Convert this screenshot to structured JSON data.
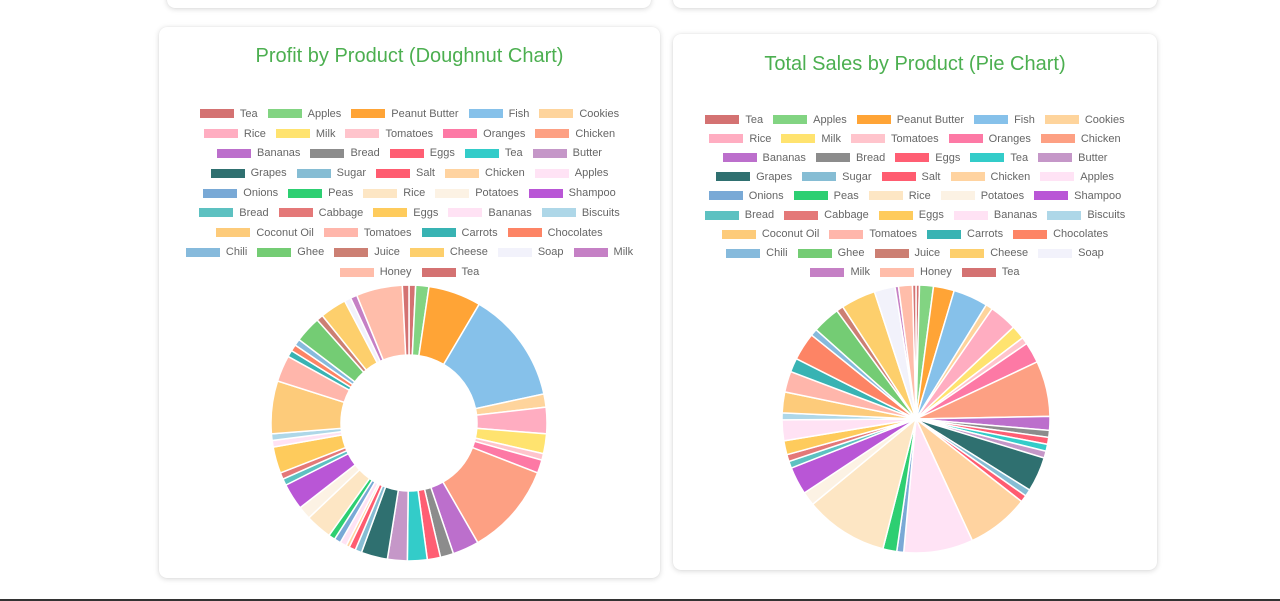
{
  "chart_data": [
    {
      "type": "pie",
      "variant": "doughnut",
      "title": "Profit by Product (Doughnut Chart)",
      "legend_position": "top",
      "categories": [
        "Tea",
        "Apples",
        "Peanut Butter",
        "Fish",
        "Cookies",
        "Rice",
        "Milk",
        "Tomatoes",
        "Oranges",
        "Chicken",
        "Bananas",
        "Bread",
        "Eggs",
        "Tea",
        "Butter",
        "Grapes",
        "Sugar",
        "Salt",
        "Chicken",
        "Apples",
        "Onions",
        "Peas",
        "Rice",
        "Potatoes",
        "Shampoo",
        "Bread",
        "Cabbage",
        "Eggs",
        "Bananas",
        "Biscuits",
        "Coconut Oil",
        "Tomatoes",
        "Carrots",
        "Chocolates",
        "Chili",
        "Ghee",
        "Juice",
        "Cheese",
        "Soap",
        "Milk",
        "Honey",
        "Tea"
      ],
      "colors": [
        "#d47272",
        "#82d482",
        "#ffa436",
        "#86c1ea",
        "#fed49c",
        "#ffadc1",
        "#ffe36f",
        "#ffc4cc",
        "#fd79a5",
        "#fda083",
        "#bc6fcc",
        "#8c8c8c",
        "#ff5e73",
        "#33ccc9",
        "#c597c8",
        "#2f7070",
        "#86bdd4",
        "#ff5c70",
        "#ffd3a0",
        "#ffe3f5",
        "#79a9d6",
        "#2dcf72",
        "#fde6c4",
        "#fcf2e4",
        "#b956d6",
        "#5dc1c1",
        "#e47878",
        "#fecb5c",
        "#ffe2f4",
        "#aed7e8",
        "#fdcb7a",
        "#ffb6ab",
        "#38b3b3",
        "#fd8465",
        "#86badc",
        "#74cc74",
        "#cc7f73",
        "#fdcf6c",
        "#f2f2fb",
        "#c580c5",
        "#ffbdaa",
        "#d47272"
      ],
      "values": [
        1,
        2,
        8,
        17,
        2,
        4,
        3,
        1,
        2,
        14,
        4,
        2,
        2,
        3,
        3,
        4,
        1,
        1,
        0.5,
        1,
        1,
        1,
        4,
        2,
        4,
        1,
        1,
        4,
        1,
        1,
        8,
        4,
        1,
        1,
        1,
        4,
        1,
        4,
        1,
        1,
        7,
        1
      ]
    },
    {
      "type": "pie",
      "variant": "pie",
      "title": "Total Sales by Product (Pie Chart)",
      "legend_position": "top",
      "categories": [
        "Tea",
        "Apples",
        "Peanut Butter",
        "Fish",
        "Cookies",
        "Rice",
        "Milk",
        "Tomatoes",
        "Oranges",
        "Chicken",
        "Bananas",
        "Bread",
        "Eggs",
        "Tea",
        "Butter",
        "Grapes",
        "Sugar",
        "Salt",
        "Chicken",
        "Apples",
        "Onions",
        "Peas",
        "Rice",
        "Potatoes",
        "Shampoo",
        "Bread",
        "Cabbage",
        "Eggs",
        "Bananas",
        "Biscuits",
        "Coconut Oil",
        "Tomatoes",
        "Carrots",
        "Chocolates",
        "Chili",
        "Ghee",
        "Juice",
        "Cheese",
        "Soap",
        "Milk",
        "Honey",
        "Tea"
      ],
      "colors": [
        "#d47272",
        "#82d482",
        "#ffa436",
        "#86c1ea",
        "#fed49c",
        "#ffadc1",
        "#ffe36f",
        "#ffc4cc",
        "#fd79a5",
        "#fda083",
        "#bc6fcc",
        "#8c8c8c",
        "#ff5e73",
        "#33ccc9",
        "#c597c8",
        "#2f7070",
        "#86bdd4",
        "#ff5c70",
        "#ffd3a0",
        "#ffe3f5",
        "#79a9d6",
        "#2dcf72",
        "#fde6c4",
        "#fcf2e4",
        "#b956d6",
        "#5dc1c1",
        "#e47878",
        "#fecb5c",
        "#ffe2f4",
        "#aed7e8",
        "#fdcb7a",
        "#ffb6ab",
        "#38b3b3",
        "#fd8465",
        "#86badc",
        "#74cc74",
        "#cc7f73",
        "#fdcf6c",
        "#f2f2fb",
        "#c580c5",
        "#ffbdaa",
        "#d47272"
      ],
      "values": [
        0.5,
        2,
        3,
        5,
        1,
        4,
        2,
        1,
        3,
        8,
        2,
        1,
        1,
        1,
        1,
        5,
        1,
        1,
        9,
        10,
        1,
        2,
        12,
        2,
        4,
        1,
        1,
        2,
        3,
        1,
        3,
        3,
        2,
        4,
        1,
        4,
        1,
        5,
        3,
        0.5,
        2,
        0.5
      ]
    }
  ]
}
